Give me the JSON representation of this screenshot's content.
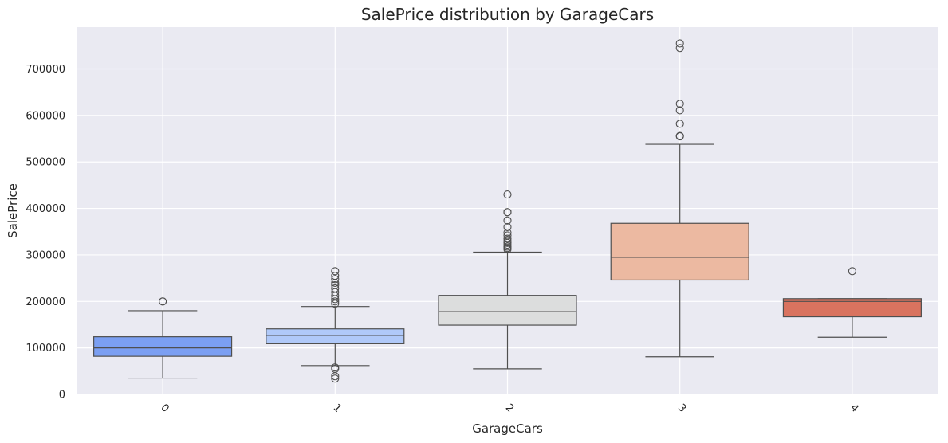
{
  "chart_data": {
    "type": "boxplot",
    "title": "SalePrice distribution by GarageCars",
    "xlabel": "GarageCars",
    "ylabel": "SalePrice",
    "categories": [
      "0",
      "1",
      "2",
      "3",
      "4"
    ],
    "yticks": [
      0,
      100000,
      200000,
      300000,
      400000,
      500000,
      600000,
      700000
    ],
    "ylim": [
      0,
      790000
    ],
    "grid": true,
    "boxes": [
      {
        "category": "0",
        "whisker_low": 35000,
        "q1": 82000,
        "median": 100000,
        "q3": 124000,
        "whisker_high": 180000,
        "outliers": [
          200000,
          200000
        ],
        "color": "#7b9ff2"
      },
      {
        "category": "1",
        "whisker_low": 62000,
        "q1": 109000,
        "median": 127000,
        "q3": 141000,
        "whisker_high": 189000,
        "outliers": [
          34000,
          39000,
          55000,
          58000,
          195000,
          200000,
          205000,
          212000,
          220000,
          228000,
          235000,
          240000,
          248000,
          255000,
          265000
        ],
        "color": "#b0c9f9"
      },
      {
        "category": "2",
        "whisker_low": 55000,
        "q1": 149000,
        "median": 178000,
        "q3": 213000,
        "whisker_high": 306000,
        "outliers": [
          312000,
          315000,
          318000,
          322000,
          326000,
          330000,
          335000,
          342000,
          348000,
          360000,
          374000,
          392000,
          392000,
          430000
        ],
        "color": "#dcdddd"
      },
      {
        "category": "3",
        "whisker_low": 81000,
        "q1": 246000,
        "median": 295000,
        "q3": 368000,
        "whisker_high": 538000,
        "outliers": [
          555000,
          556000,
          582000,
          611000,
          625000,
          745000,
          755000
        ],
        "color": "#ecb9a1"
      },
      {
        "category": "4",
        "whisker_low": 123000,
        "q1": 167000,
        "median": 200000,
        "q3": 206000,
        "whisker_high": 206000,
        "outliers": [
          265000
        ],
        "color": "#d9735f"
      }
    ]
  }
}
